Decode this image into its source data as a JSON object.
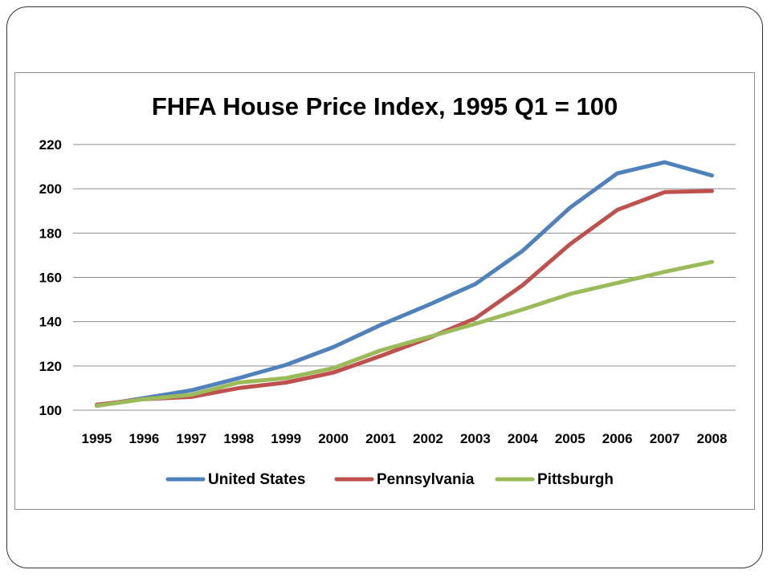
{
  "chart_data": {
    "type": "line",
    "title": "FHFA House Price Index, 1995 Q1 = 100",
    "xlabel": "",
    "ylabel": "",
    "categories": [
      "1995",
      "1996",
      "1997",
      "1998",
      "1999",
      "2000",
      "2001",
      "2002",
      "2003",
      "2004",
      "2005",
      "2006",
      "2007",
      "2008"
    ],
    "y_ticks": [
      "100",
      "120",
      "140",
      "160",
      "180",
      "200",
      "220"
    ],
    "ylim": [
      100,
      220
    ],
    "grid": true,
    "legend_position": "bottom",
    "series": [
      {
        "name": "United States",
        "color": "#4f81bd",
        "values": [
          102,
          105.5,
          109,
          114.5,
          120.5,
          128.5,
          138.5,
          147.5,
          157,
          172,
          191.5,
          207,
          212,
          206
        ]
      },
      {
        "name": "Pennsylvania",
        "color": "#c0504d",
        "values": [
          102.5,
          105,
          106,
          110,
          112.5,
          117,
          124.5,
          132.5,
          141.5,
          156.5,
          175,
          190.5,
          198.5,
          199
        ]
      },
      {
        "name": "Pittsburgh",
        "color": "#9bbb59",
        "values": [
          102,
          105,
          107,
          112.5,
          114.5,
          119,
          127,
          133,
          139,
          145.5,
          152.5,
          157.5,
          162.5,
          167
        ]
      }
    ]
  }
}
